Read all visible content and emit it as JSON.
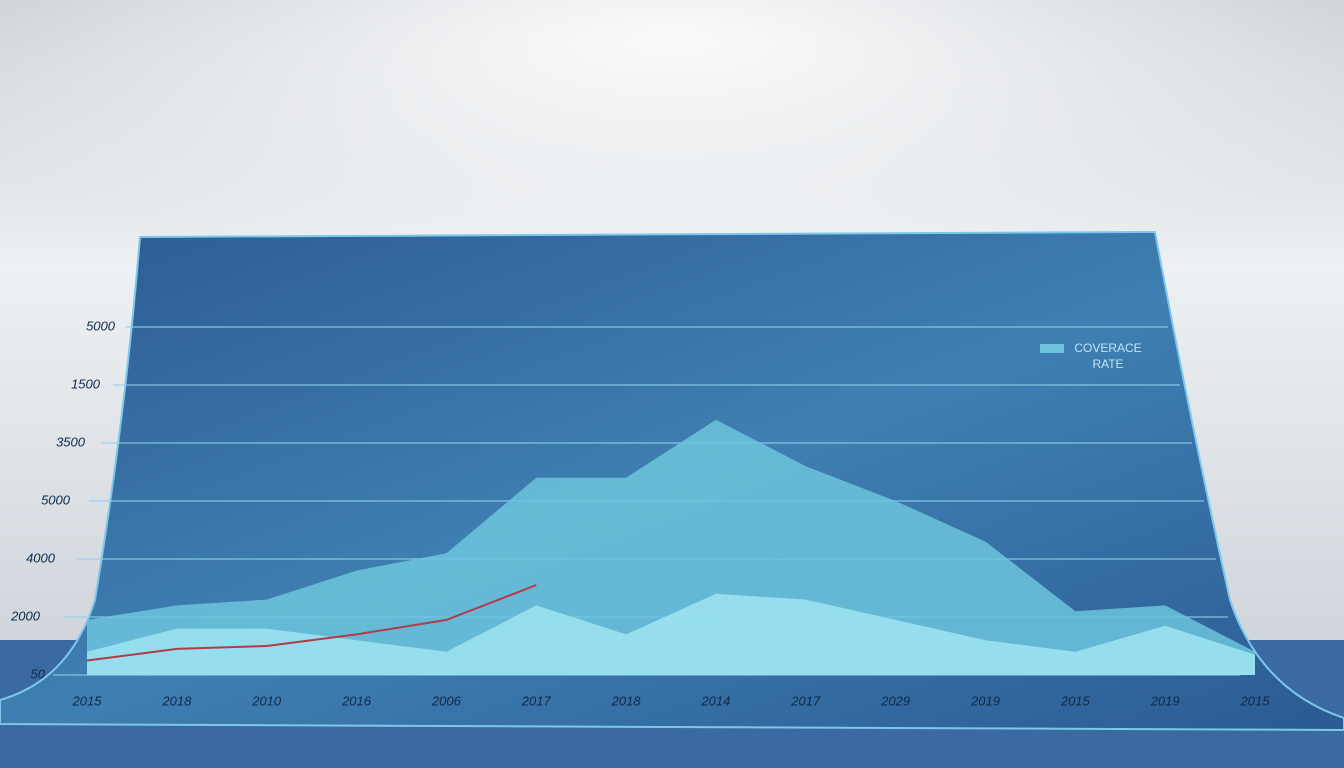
{
  "chart_data": {
    "type": "area",
    "categories": [
      "2015",
      "2018",
      "2010",
      "2016",
      "2006",
      "2017",
      "2018",
      "2014",
      "2017",
      "2029",
      "2019",
      "2015",
      "2019",
      "2015"
    ],
    "series": [
      {
        "name": "COVERACE RATE",
        "color": "#6cc4dd",
        "values": [
          0.95,
          1.2,
          1.3,
          1.8,
          2.1,
          3.4,
          3.4,
          4.4,
          3.6,
          3.0,
          2.3,
          1.1,
          1.2,
          0.4
        ]
      },
      {
        "color": "#9fe4f2",
        "values": [
          0.4,
          0.8,
          0.8,
          0.6,
          0.4,
          1.2,
          0.7,
          1.4,
          1.3,
          0.95,
          0.6,
          0.4,
          0.85,
          0.35
        ]
      },
      {
        "color": "#b23a4a",
        "line": true,
        "values": [
          0.25,
          0.45,
          0.5,
          0.7,
          0.95,
          1.55,
          null,
          null,
          null,
          null,
          null,
          null,
          null,
          null
        ]
      }
    ],
    "ylim": [
      0,
      6
    ],
    "yticks": [
      {
        "value": 0,
        "label": "50"
      },
      {
        "value": 1,
        "label": "2000"
      },
      {
        "value": 2,
        "label": "4000"
      },
      {
        "value": 3,
        "label": "5000"
      },
      {
        "value": 4,
        "label": "3500"
      },
      {
        "value": 5,
        "label": "1500"
      },
      {
        "value": 6,
        "label": "5000"
      }
    ],
    "grid": true
  }
}
